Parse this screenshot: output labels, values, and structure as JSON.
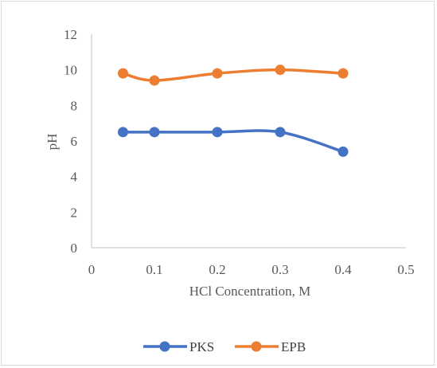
{
  "chart_data": {
    "type": "line",
    "smooth": true,
    "title": "",
    "xlabel": "HCl Concentration, M",
    "ylabel": "pH",
    "xlim": [
      0,
      0.5
    ],
    "ylim": [
      0,
      12
    ],
    "x_ticks": [
      0,
      0.1,
      0.2,
      0.3,
      0.4,
      0.5
    ],
    "y_ticks": [
      0,
      2,
      4,
      6,
      8,
      10,
      12
    ],
    "x_tick_labels": [
      "0",
      "0.1",
      "0.2",
      "0.3",
      "0.4",
      "0.5"
    ],
    "y_tick_labels": [
      "0",
      "2",
      "4",
      "6",
      "8",
      "10",
      "12"
    ],
    "grid": false,
    "legend_position": "bottom",
    "series": [
      {
        "name": "PKS",
        "color": "#4472c4",
        "x": [
          0.05,
          0.1,
          0.2,
          0.3,
          0.4
        ],
        "y": [
          6.5,
          6.5,
          6.5,
          6.5,
          5.4
        ]
      },
      {
        "name": "EPB",
        "color": "#ed7d31",
        "x": [
          0.05,
          0.1,
          0.2,
          0.3,
          0.4
        ],
        "y": [
          9.8,
          9.4,
          9.8,
          10.0,
          9.8
        ]
      }
    ]
  }
}
